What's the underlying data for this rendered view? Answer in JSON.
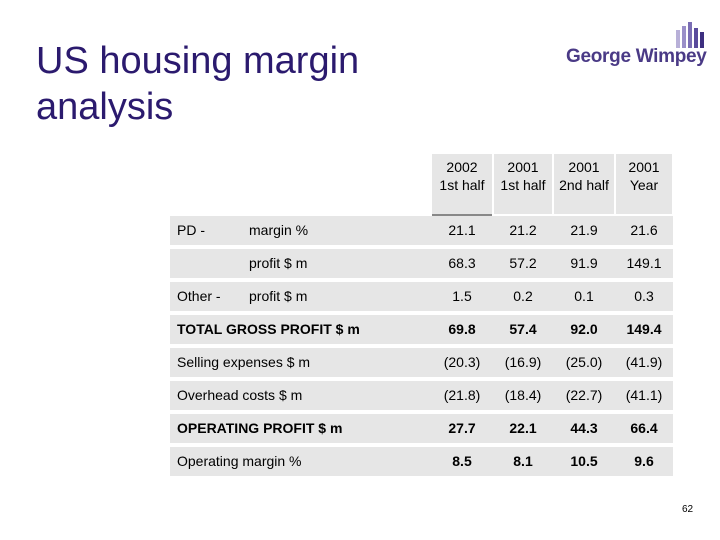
{
  "title": "US housing margin analysis",
  "logo": {
    "text": "George Wimpey"
  },
  "page_number": "62",
  "columns": [
    {
      "line1": "2002",
      "line2": "1st half"
    },
    {
      "line1": "2001",
      "line2": "1st half"
    },
    {
      "line1": "2001",
      "line2": "2nd half"
    },
    {
      "line1": "2001",
      "line2": "Year"
    }
  ],
  "rows": [
    {
      "label1": "PD -",
      "label2": "margin %",
      "values": [
        "21.1",
        "21.2",
        "21.9",
        "21.6"
      ],
      "bold": false
    },
    {
      "label1": "",
      "label2": "profit $ m",
      "values": [
        "68.3",
        "57.2",
        "91.9",
        "149.1"
      ],
      "bold": false
    },
    {
      "label1": "Other -",
      "label2": "profit $ m",
      "values": [
        "1.5",
        "0.2",
        "0.1",
        "0.3"
      ],
      "bold": false
    },
    {
      "label1": "TOTAL GROSS PROFIT $ m",
      "label2": "",
      "values": [
        "69.8",
        "57.4",
        "92.0",
        "149.4"
      ],
      "bold": true
    },
    {
      "label1": "Selling expenses $ m",
      "label2": "",
      "values": [
        "(20.3)",
        "(16.9)",
        "(25.0)",
        "(41.9)"
      ],
      "bold": false
    },
    {
      "label1": "Overhead costs $ m",
      "label2": "",
      "values": [
        "(21.8)",
        "(18.4)",
        "(22.7)",
        "(41.1)"
      ],
      "bold": false
    },
    {
      "label1": "OPERATING PROFIT $ m",
      "label2": "",
      "values": [
        "27.7",
        "22.1",
        "44.3",
        "66.4"
      ],
      "bold": true
    },
    {
      "label1": "Operating margin %",
      "label2": "",
      "values": [
        "8.5",
        "8.1",
        "10.5",
        "9.6"
      ],
      "bold": false
    }
  ],
  "colors": {
    "title": "#2b1a6e",
    "row_bg": "#e6e6e6",
    "logo_purple": "#4a3a86"
  }
}
